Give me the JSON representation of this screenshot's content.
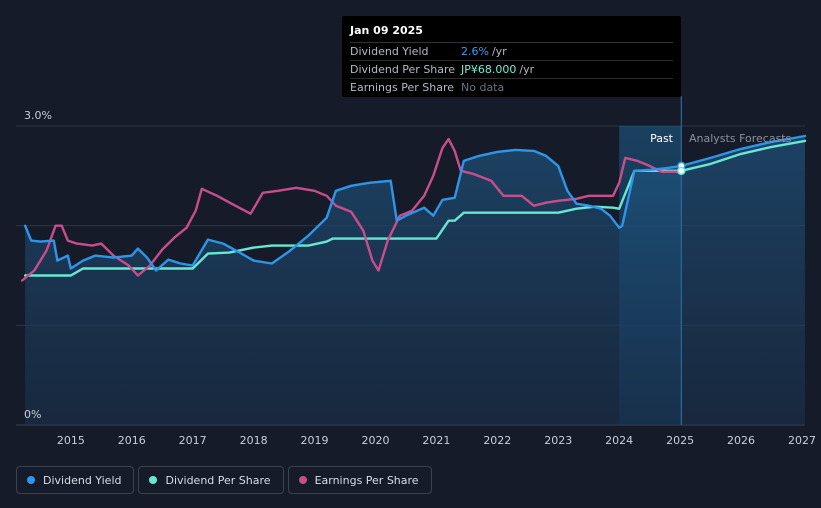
{
  "tooltip": {
    "date": "Jan 09 2025",
    "rows": [
      {
        "label": "Dividend Yield",
        "value": "2.6%",
        "unit": "/yr",
        "color": "#3b9cf0"
      },
      {
        "label": "Dividend Per Share",
        "value": "JP¥68.000",
        "unit": "/yr",
        "color": "#6ff0d8"
      },
      {
        "label": "Earnings Per Share",
        "value": "No data",
        "unit": "",
        "color": "#6b7280"
      }
    ]
  },
  "regions": {
    "past": "Past",
    "forecast": "Analysts Forecasts"
  },
  "legend": [
    {
      "label": "Dividend Yield",
      "color": "#2f95e8"
    },
    {
      "label": "Dividend Per Share",
      "color": "#66e8d4"
    },
    {
      "label": "Earnings Per Share",
      "color": "#c94d8c"
    }
  ],
  "chart_data": {
    "type": "line",
    "xlim": [
      2014.1,
      2027.05
    ],
    "ylim": [
      0,
      3.0
    ],
    "y_ticks": [
      {
        "value": 3.0,
        "label": "3.0%"
      },
      {
        "value": 0,
        "label": "0%"
      }
    ],
    "x_ticks": [
      "2015",
      "2016",
      "2017",
      "2018",
      "2019",
      "2020",
      "2021",
      "2022",
      "2023",
      "2024",
      "2025",
      "2026",
      "2027"
    ],
    "past_end": 2025.02,
    "forecast_shade_start": 2024.0,
    "series": [
      {
        "name": "Dividend Yield",
        "unit": "%",
        "color": "#2f95e8",
        "points": [
          [
            2014.25,
            2.0
          ],
          [
            2014.35,
            1.85
          ],
          [
            2014.5,
            1.84
          ],
          [
            2014.72,
            1.85
          ],
          [
            2014.78,
            1.65
          ],
          [
            2014.95,
            1.7
          ],
          [
            2015.0,
            1.57
          ],
          [
            2015.2,
            1.65
          ],
          [
            2015.4,
            1.7
          ],
          [
            2015.7,
            1.68
          ],
          [
            2016.0,
            1.7
          ],
          [
            2016.1,
            1.77
          ],
          [
            2016.25,
            1.68
          ],
          [
            2016.4,
            1.55
          ],
          [
            2016.6,
            1.66
          ],
          [
            2016.8,
            1.62
          ],
          [
            2017.0,
            1.6
          ],
          [
            2017.25,
            1.86
          ],
          [
            2017.5,
            1.82
          ],
          [
            2017.8,
            1.72
          ],
          [
            2018.0,
            1.65
          ],
          [
            2018.3,
            1.62
          ],
          [
            2018.6,
            1.75
          ],
          [
            2018.9,
            1.9
          ],
          [
            2019.2,
            2.08
          ],
          [
            2019.35,
            2.35
          ],
          [
            2019.6,
            2.4
          ],
          [
            2019.9,
            2.43
          ],
          [
            2020.25,
            2.45
          ],
          [
            2020.35,
            2.05
          ],
          [
            2020.5,
            2.1
          ],
          [
            2020.8,
            2.18
          ],
          [
            2020.95,
            2.1
          ],
          [
            2021.1,
            2.26
          ],
          [
            2021.3,
            2.28
          ],
          [
            2021.45,
            2.65
          ],
          [
            2021.7,
            2.7
          ],
          [
            2022.0,
            2.74
          ],
          [
            2022.3,
            2.76
          ],
          [
            2022.6,
            2.75
          ],
          [
            2022.8,
            2.7
          ],
          [
            2023.0,
            2.6
          ],
          [
            2023.15,
            2.35
          ],
          [
            2023.3,
            2.22
          ],
          [
            2023.5,
            2.2
          ],
          [
            2023.7,
            2.17
          ],
          [
            2023.85,
            2.1
          ],
          [
            2024.0,
            1.98
          ],
          [
            2024.05,
            2.0
          ],
          [
            2024.25,
            2.55
          ],
          [
            2024.5,
            2.56
          ],
          [
            2024.8,
            2.58
          ],
          [
            2025.02,
            2.6
          ],
          [
            2025.5,
            2.68
          ],
          [
            2026.0,
            2.77
          ],
          [
            2026.5,
            2.84
          ],
          [
            2027.05,
            2.9
          ]
        ]
      },
      {
        "name": "Dividend Per Share",
        "unit": "JP¥",
        "color": "#66e8d4",
        "points": [
          [
            2014.25,
            1.5
          ],
          [
            2014.5,
            1.5
          ],
          [
            2015.0,
            1.5
          ],
          [
            2015.2,
            1.57
          ],
          [
            2015.6,
            1.57
          ],
          [
            2016.0,
            1.57
          ],
          [
            2016.5,
            1.57
          ],
          [
            2017.0,
            1.57
          ],
          [
            2017.25,
            1.72
          ],
          [
            2017.6,
            1.73
          ],
          [
            2018.0,
            1.78
          ],
          [
            2018.3,
            1.8
          ],
          [
            2018.6,
            1.8
          ],
          [
            2018.9,
            1.8
          ],
          [
            2019.2,
            1.84
          ],
          [
            2019.3,
            1.87
          ],
          [
            2019.6,
            1.87
          ],
          [
            2020.0,
            1.87
          ],
          [
            2020.5,
            1.87
          ],
          [
            2021.0,
            1.87
          ],
          [
            2021.2,
            2.05
          ],
          [
            2021.3,
            2.05
          ],
          [
            2021.45,
            2.13
          ],
          [
            2021.6,
            2.13
          ],
          [
            2022.0,
            2.13
          ],
          [
            2022.5,
            2.13
          ],
          [
            2023.0,
            2.13
          ],
          [
            2023.3,
            2.17
          ],
          [
            2023.6,
            2.19
          ],
          [
            2023.9,
            2.18
          ],
          [
            2024.0,
            2.17
          ],
          [
            2024.25,
            2.55
          ],
          [
            2024.5,
            2.55
          ],
          [
            2024.8,
            2.55
          ],
          [
            2025.02,
            2.55
          ],
          [
            2025.5,
            2.62
          ],
          [
            2026.0,
            2.72
          ],
          [
            2026.5,
            2.79
          ],
          [
            2027.05,
            2.85
          ]
        ]
      },
      {
        "name": "Earnings Per Share",
        "unit": "JP¥",
        "color": "#c94d8c",
        "points": [
          [
            2014.2,
            1.45
          ],
          [
            2014.4,
            1.55
          ],
          [
            2014.6,
            1.75
          ],
          [
            2014.75,
            2.0
          ],
          [
            2014.85,
            2.0
          ],
          [
            2014.95,
            1.85
          ],
          [
            2015.1,
            1.82
          ],
          [
            2015.35,
            1.8
          ],
          [
            2015.5,
            1.82
          ],
          [
            2015.7,
            1.7
          ],
          [
            2015.95,
            1.6
          ],
          [
            2016.1,
            1.5
          ],
          [
            2016.3,
            1.6
          ],
          [
            2016.5,
            1.76
          ],
          [
            2016.7,
            1.88
          ],
          [
            2016.9,
            1.98
          ],
          [
            2017.05,
            2.15
          ],
          [
            2017.15,
            2.37
          ],
          [
            2017.4,
            2.3
          ],
          [
            2017.7,
            2.2
          ],
          [
            2017.95,
            2.12
          ],
          [
            2018.15,
            2.33
          ],
          [
            2018.4,
            2.35
          ],
          [
            2018.7,
            2.38
          ],
          [
            2019.0,
            2.35
          ],
          [
            2019.2,
            2.3
          ],
          [
            2019.35,
            2.2
          ],
          [
            2019.6,
            2.14
          ],
          [
            2019.8,
            1.95
          ],
          [
            2019.95,
            1.65
          ],
          [
            2020.05,
            1.55
          ],
          [
            2020.2,
            1.85
          ],
          [
            2020.4,
            2.1
          ],
          [
            2020.6,
            2.15
          ],
          [
            2020.8,
            2.3
          ],
          [
            2020.95,
            2.5
          ],
          [
            2021.1,
            2.78
          ],
          [
            2021.2,
            2.87
          ],
          [
            2021.3,
            2.75
          ],
          [
            2021.4,
            2.55
          ],
          [
            2021.6,
            2.52
          ],
          [
            2021.9,
            2.45
          ],
          [
            2022.1,
            2.3
          ],
          [
            2022.4,
            2.3
          ],
          [
            2022.6,
            2.2
          ],
          [
            2022.8,
            2.23
          ],
          [
            2023.0,
            2.25
          ],
          [
            2023.3,
            2.27
          ],
          [
            2023.5,
            2.3
          ],
          [
            2023.7,
            2.3
          ],
          [
            2023.9,
            2.3
          ],
          [
            2024.0,
            2.43
          ],
          [
            2024.1,
            2.68
          ],
          [
            2024.3,
            2.65
          ],
          [
            2024.5,
            2.6
          ],
          [
            2024.7,
            2.54
          ],
          [
            2025.0,
            2.54
          ]
        ]
      }
    ]
  }
}
